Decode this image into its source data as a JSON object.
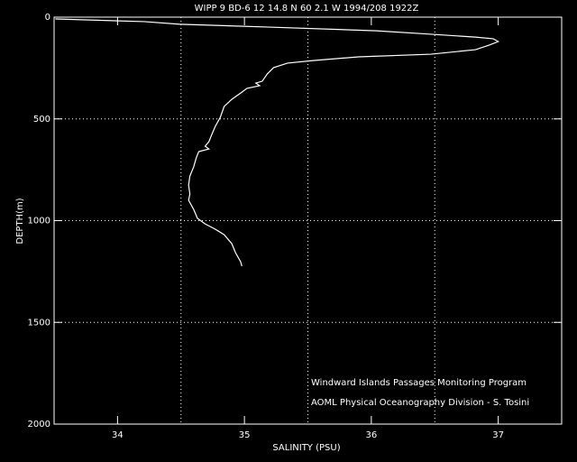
{
  "chart_data": {
    "type": "line",
    "title": "WIPP 9 BD-6  12 14.8 N  60  2.1 W  1994/208 1922Z",
    "xlabel": "SALINITY (PSU)",
    "ylabel": "DEPTH(m)",
    "annotations": [
      "Windward Islands Passages Monitoring Program",
      "AOML Physical Oceanography Division - S. Tosini"
    ],
    "x": [
      33.51,
      34.21,
      34.49,
      35.2,
      36.04,
      36.47,
      36.82,
      36.96,
      37.0,
      36.93,
      36.82,
      36.47,
      35.9,
      35.55,
      35.34,
      35.23,
      35.18,
      35.14,
      35.09,
      35.12,
      35.02,
      34.97,
      34.9,
      34.84,
      34.81,
      34.77,
      34.74,
      34.72,
      34.69,
      34.72,
      34.64,
      34.62,
      34.6,
      34.57,
      34.56,
      34.57,
      34.56,
      34.6,
      34.63,
      34.69,
      34.77,
      34.84,
      34.9,
      34.93,
      34.97,
      34.98
    ],
    "values": [
      9,
      22,
      35,
      49,
      67,
      84,
      98,
      106,
      120,
      137,
      160,
      182,
      195,
      213,
      226,
      248,
      279,
      315,
      324,
      337,
      350,
      373,
      404,
      439,
      492,
      537,
      581,
      612,
      634,
      648,
      661,
      692,
      736,
      781,
      825,
      869,
      900,
      945,
      989,
      1016,
      1042,
      1069,
      1113,
      1158,
      1202,
      1224
    ],
    "color": "#ffffff",
    "xlim": [
      33.5,
      37.5
    ],
    "xticks": [
      34,
      35,
      36,
      37
    ],
    "ylim": [
      0,
      2000
    ],
    "yticks": [
      0,
      500,
      1000,
      1500,
      2000
    ],
    "y_inverted": true,
    "xgrid": [
      34.5,
      35.5,
      36.5
    ],
    "ygrid": [
      500,
      1000,
      1500
    ]
  }
}
